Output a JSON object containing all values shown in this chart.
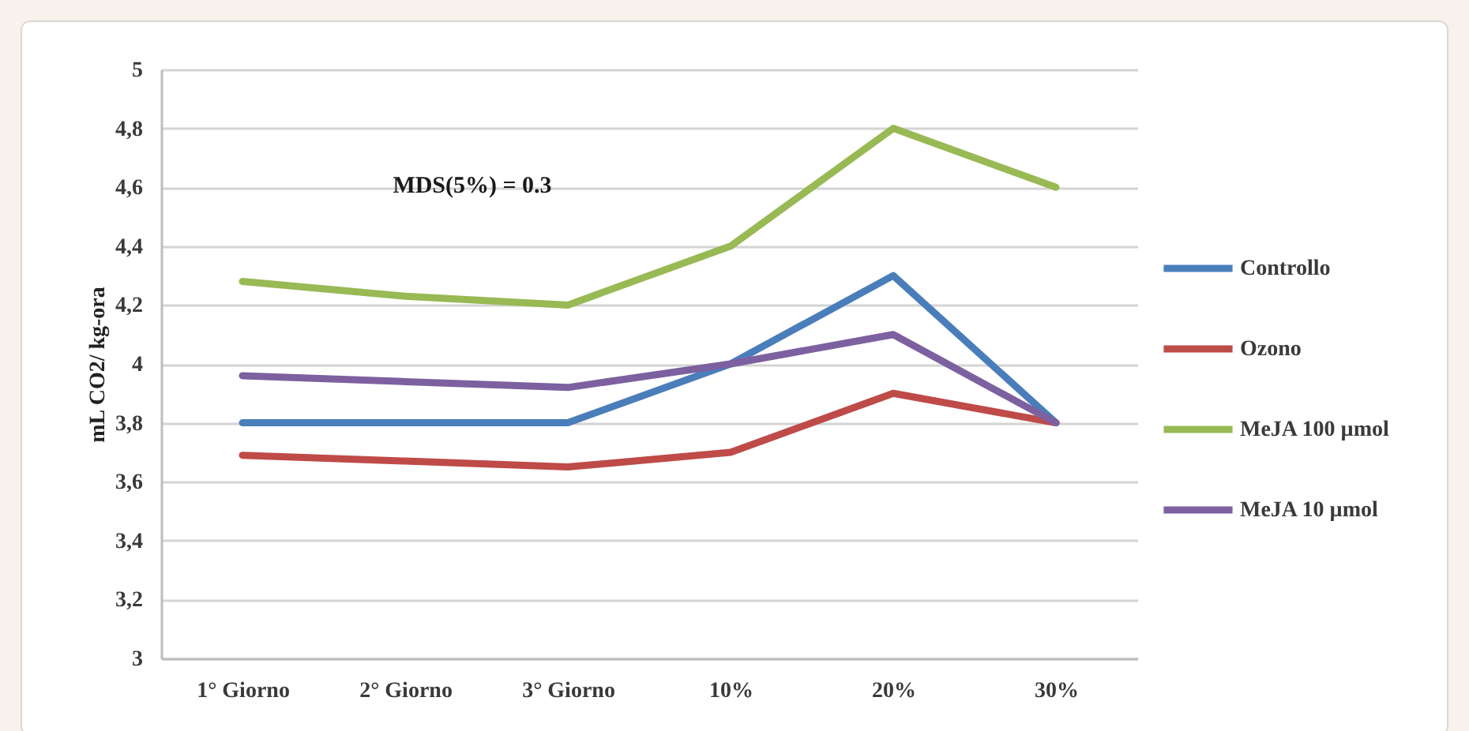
{
  "chart_data": {
    "type": "line",
    "ylabel": "mL CO2/ kg-ora",
    "categories": [
      "1° Giorno",
      "2° Giorno",
      "3° Giorno",
      "10%",
      "20%",
      "30%"
    ],
    "series": [
      {
        "name": "Controllo",
        "color": "#4a7ebb",
        "values": [
          3.8,
          3.8,
          3.8,
          4.0,
          4.3,
          3.8
        ]
      },
      {
        "name": "Ozono",
        "color": "#be4b48",
        "values": [
          3.69,
          3.67,
          3.65,
          3.7,
          3.9,
          3.8
        ]
      },
      {
        "name": "MeJA 100 µmol",
        "color": "#98b954",
        "values": [
          4.28,
          4.23,
          4.2,
          4.4,
          4.8,
          4.6
        ]
      },
      {
        "name": "MeJA 10 µmol",
        "color": "#7d60a0",
        "values": [
          3.96,
          3.94,
          3.92,
          4.0,
          4.1,
          3.8
        ]
      }
    ],
    "ylim": [
      3,
      5
    ],
    "yticks": [
      3,
      {
        "value": 3.2,
        "label": "3,2"
      },
      {
        "value": 3.4,
        "label": "3,4"
      },
      {
        "value": 3.6,
        "label": "3,6"
      },
      {
        "value": 3.8,
        "label": "3,8"
      },
      4,
      {
        "value": 4.2,
        "label": "4,2"
      },
      {
        "value": 4.4,
        "label": "4,4"
      },
      {
        "value": 4.6,
        "label": "4,6"
      },
      {
        "value": 4.8,
        "label": "4,8"
      },
      5
    ],
    "grid": "y",
    "legend": "right",
    "line_style": "solid",
    "annotations": [
      "MDS(5%) = 0.3"
    ]
  }
}
